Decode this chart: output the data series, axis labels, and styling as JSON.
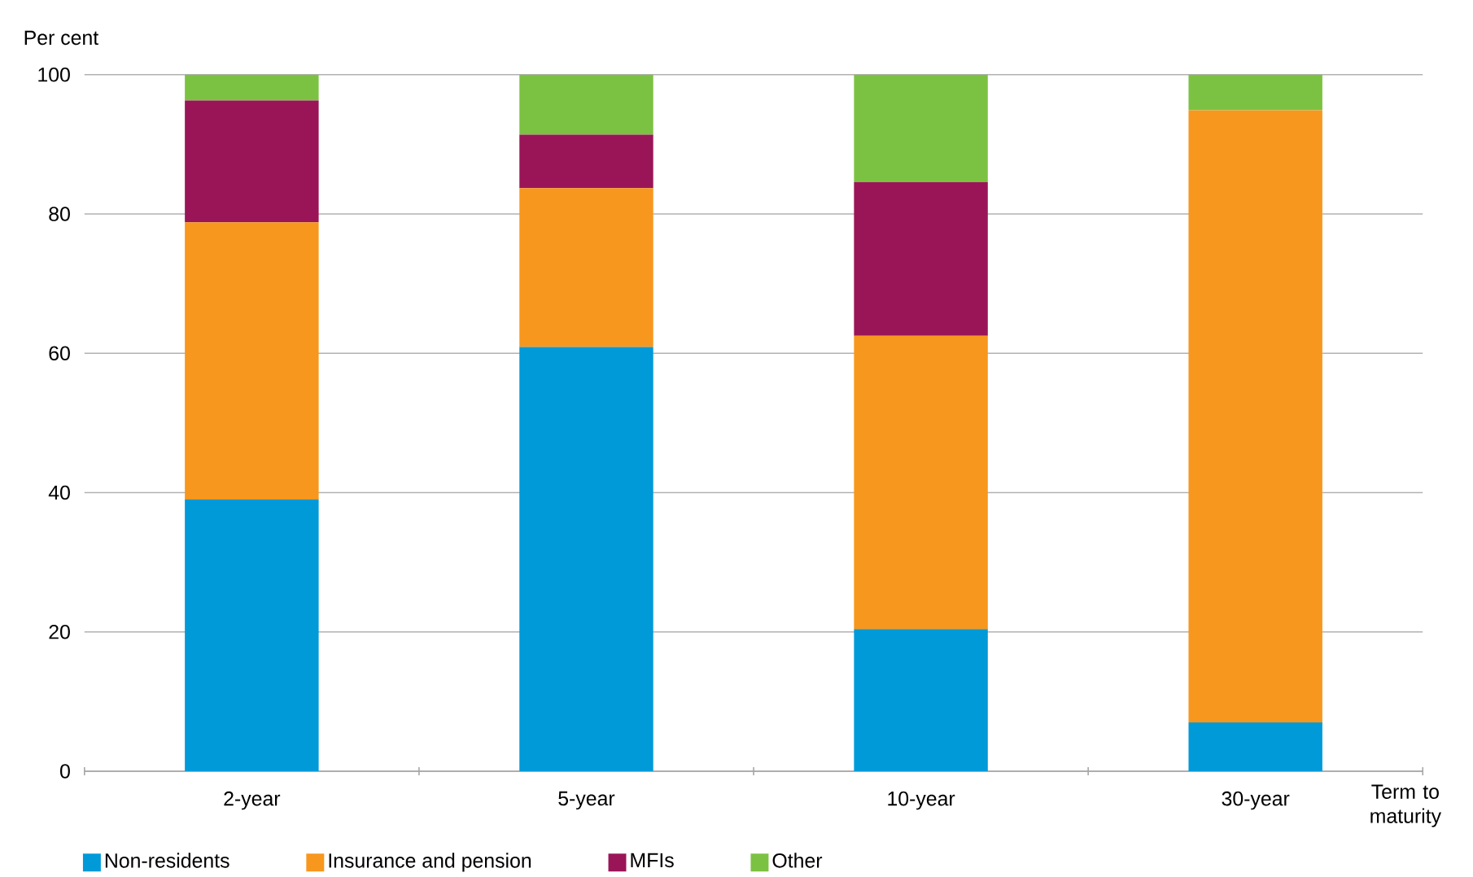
{
  "chart_data": {
    "type": "bar",
    "stacked": true,
    "ylabel": "Per cent",
    "xlabel": "Term to maturity",
    "categories": [
      "2-year",
      "5-year",
      "10-year",
      "30-year"
    ],
    "series": [
      {
        "name": "Non-residents",
        "color": "#009ad8",
        "values": [
          39.0,
          60.9,
          20.4,
          7.0
        ]
      },
      {
        "name": "Insurance and pension",
        "color": "#f7971d",
        "values": [
          39.8,
          22.8,
          42.1,
          87.9
        ]
      },
      {
        "name": "MFIs",
        "color": "#9a1558",
        "values": [
          17.5,
          7.7,
          22.1,
          0
        ]
      },
      {
        "name": "Other",
        "color": "#7cc242",
        "values": [
          3.7,
          8.6,
          15.4,
          5.1
        ]
      }
    ],
    "ylim": [
      0,
      100
    ],
    "yticks": [
      0,
      20,
      40,
      60,
      80,
      100
    ],
    "grid": "y",
    "legend": "bottom"
  }
}
